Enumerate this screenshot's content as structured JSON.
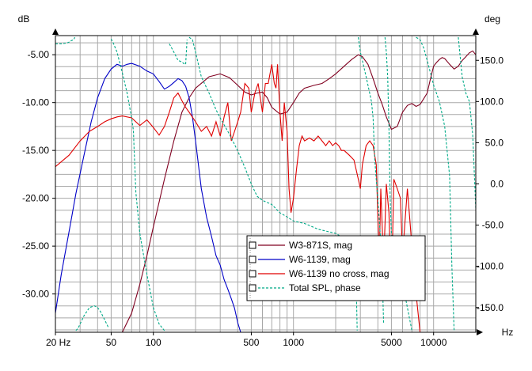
{
  "chart_data": {
    "type": "line",
    "x_scale": "log",
    "xlim": [
      20,
      20000
    ],
    "ylim": [
      -34,
      -3
    ],
    "y2lim": [
      -180,
      180
    ],
    "left_unit": "dB",
    "right_unit": "deg",
    "x_unit": "Hz",
    "grid": true,
    "legend_position": "bottom-right",
    "x_ticks": [
      "20 Hz",
      "50",
      "100",
      "500",
      "1000",
      "5000",
      "10000"
    ],
    "x_tick_values": [
      20,
      50,
      100,
      500,
      1000,
      5000,
      10000
    ],
    "y_ticks": [
      "-5.00",
      "-10.00",
      "-15.00",
      "-20.00",
      "-25.00",
      "-30.00"
    ],
    "y_tick_values": [
      -5,
      -10,
      -15,
      -20,
      -25,
      -30
    ],
    "y2_ticks": [
      "150.0",
      "100.0",
      "50.0",
      "0.0",
      "-50.0",
      "-100.0",
      "-150.0"
    ],
    "y2_tick_values": [
      150,
      100,
      50,
      0,
      -50,
      -100,
      -150
    ],
    "series": [
      {
        "name": "W3-871S, mag",
        "color": "#800020",
        "dash": "solid",
        "axis": "left",
        "x": [
          60,
          70,
          80,
          90,
          100,
          120,
          140,
          160,
          180,
          200,
          250,
          300,
          350,
          400,
          450,
          500,
          550,
          600,
          650,
          700,
          800,
          900,
          1000,
          1100,
          1200,
          1400,
          1600,
          1800,
          2000,
          2300,
          2600,
          2900,
          3100,
          3400,
          3700,
          4000,
          4300,
          4600,
          5000,
          5500,
          6000,
          6500,
          7000,
          7500,
          8000,
          8500,
          9000,
          9500,
          10000,
          10500,
          11000,
          11500,
          12000,
          13000,
          14000,
          15000,
          16000,
          17000,
          18000,
          19000,
          20000
        ],
        "values": [
          -34,
          -32,
          -29,
          -26,
          -23,
          -18,
          -14,
          -11,
          -9.5,
          -8.5,
          -7.3,
          -7.0,
          -7.4,
          -8.2,
          -8.9,
          -9.2,
          -9.0,
          -8.9,
          -9.5,
          -10.5,
          -11.2,
          -11.0,
          -10.0,
          -9.0,
          -8.5,
          -8.2,
          -8.0,
          -7.5,
          -7.0,
          -6.2,
          -5.5,
          -5.0,
          -5.2,
          -6.0,
          -7.5,
          -9.0,
          -10.2,
          -11.5,
          -12.8,
          -12.5,
          -11.0,
          -10.3,
          -10.1,
          -10.4,
          -10.2,
          -9.6,
          -9.0,
          -7.5,
          -6.2,
          -5.8,
          -5.5,
          -5.3,
          -5.4,
          -6.0,
          -6.5,
          -6.2,
          -5.6,
          -5.2,
          -4.8,
          -4.6,
          -5.0
        ]
      },
      {
        "name": "W6-1139, mag",
        "color": "#0000c8",
        "dash": "solid",
        "axis": "left",
        "x": [
          20,
          22,
          25,
          28,
          32,
          36,
          40,
          45,
          50,
          55,
          60,
          65,
          70,
          80,
          90,
          100,
          110,
          120,
          130,
          140,
          150,
          160,
          170,
          180,
          190,
          200,
          220,
          240,
          260,
          280,
          300,
          320,
          340,
          360,
          380,
          400,
          420
        ],
        "values": [
          -32,
          -28,
          -23.5,
          -19.5,
          -15.5,
          -12,
          -9.5,
          -7.5,
          -6.5,
          -6.0,
          -6.2,
          -6.0,
          -5.9,
          -6.2,
          -6.7,
          -7.0,
          -7.8,
          -8.6,
          -8.3,
          -7.9,
          -7.5,
          -7.7,
          -8.3,
          -9.5,
          -11.5,
          -14,
          -19,
          -22,
          -24,
          -26,
          -27,
          -28.5,
          -29.5,
          -30.5,
          -31.5,
          -33,
          -34
        ]
      },
      {
        "name": "W6-1139 no cross, mag",
        "color": "#e00000",
        "dash": "solid",
        "axis": "left",
        "x": [
          20,
          25,
          30,
          35,
          40,
          45,
          50,
          55,
          60,
          70,
          80,
          90,
          100,
          110,
          120,
          130,
          140,
          150,
          160,
          170,
          180,
          200,
          220,
          240,
          260,
          280,
          300,
          320,
          340,
          360,
          380,
          400,
          420,
          450,
          480,
          500,
          530,
          560,
          600,
          630,
          660,
          700,
          730,
          750,
          770,
          800,
          830,
          860,
          900,
          930,
          960,
          1000,
          1050,
          1100,
          1150,
          1200,
          1300,
          1400,
          1500,
          1600,
          1700,
          1800,
          1900,
          2000,
          2100,
          2200,
          2300,
          2500,
          2700,
          2900,
          3000,
          3100,
          3300,
          3500,
          3700,
          3900,
          4000,
          4100,
          4200,
          4400,
          4600,
          4800,
          5000,
          5200,
          5500,
          5800,
          6000,
          6500,
          7000,
          7500,
          8000
        ],
        "values": [
          -16.7,
          -15.5,
          -14.0,
          -13.0,
          -12.5,
          -12.0,
          -11.7,
          -11.5,
          -11.4,
          -11.6,
          -12.4,
          -11.8,
          -12.6,
          -13.4,
          -12.5,
          -11.0,
          -9.5,
          -9.0,
          -9.8,
          -10.5,
          -11.0,
          -12.0,
          -13.0,
          -12.5,
          -13.5,
          -12.0,
          -13.5,
          -11.5,
          -10.0,
          -14.0,
          -13.0,
          -12.0,
          -11.0,
          -8.0,
          -8.5,
          -11.0,
          -9.0,
          -8.0,
          -11.0,
          -8.0,
          -8.0,
          -6.0,
          -8.0,
          -8.5,
          -6.0,
          -11.0,
          -14.0,
          -10.0,
          -13.0,
          -19.0,
          -21.5,
          -20.0,
          -17.0,
          -14.5,
          -13.5,
          -14.0,
          -13.7,
          -14.0,
          -13.5,
          -14.0,
          -14.5,
          -14.0,
          -14.5,
          -14.2,
          -14.5,
          -15.0,
          -15.0,
          -15.5,
          -16.0,
          -18.0,
          -19.0,
          -16.5,
          -14.5,
          -14.0,
          -14.5,
          -16.5,
          -22.0,
          -26.0,
          -19.0,
          -27.0,
          -18.5,
          -21.5,
          -30.0,
          -18.0,
          -19.0,
          -20.0,
          -26.0,
          -19.0,
          -25.0,
          -30.0,
          -34.0
        ]
      },
      {
        "name": "Total SPL, phase",
        "color": "#00aa88",
        "dash": "dashed",
        "axis": "right",
        "x": [
          20,
          22,
          24,
          25,
          26,
          27,
          27.5,
          28,
          29,
          30,
          32,
          35,
          38,
          40,
          42,
          45,
          48,
          50,
          52,
          55,
          60,
          65,
          70,
          72,
          73,
          74,
          75,
          80,
          90,
          100,
          110,
          120,
          130,
          140,
          150,
          160,
          165,
          170,
          172,
          174,
          176,
          180,
          190,
          200,
          220,
          250,
          280,
          300,
          350,
          400,
          450,
          500,
          550,
          600,
          700,
          800,
          900,
          1000,
          1200,
          1500,
          2000,
          2500,
          2700,
          2800,
          2850,
          2900,
          3000,
          3300,
          3500,
          3600,
          3700,
          3800,
          4000,
          4200,
          4300,
          4400,
          4500,
          4600,
          4700,
          4800,
          4850,
          4900,
          5000,
          5500,
          6000,
          6500,
          7000,
          7500,
          8000,
          8500,
          9000,
          10000,
          11000,
          12000,
          13000,
          13500,
          14000,
          15000,
          16000,
          17000,
          18000,
          19000,
          20000
        ],
        "values": [
          170,
          170,
          171,
          172,
          174,
          175,
          178,
          -178,
          -175,
          -170,
          -160,
          -150,
          -148,
          -150,
          -155,
          -165,
          -175,
          176,
          170,
          160,
          135,
          110,
          80,
          65,
          40,
          15,
          -10,
          -60,
          -110,
          -150,
          -170,
          -178,
          170,
          160,
          150,
          148,
          146,
          145,
          160,
          175,
          -178,
          178,
          175,
          160,
          130,
          110,
          90,
          80,
          60,
          40,
          20,
          0,
          -15,
          -20,
          -25,
          -35,
          -40,
          -45,
          -48,
          -55,
          -60,
          -70,
          -80,
          -120,
          -178,
          178,
          160,
          130,
          110,
          100,
          80,
          30,
          -20,
          -70,
          -110,
          -170,
          178,
          160,
          130,
          70,
          20,
          -20,
          -60,
          -90,
          -120,
          -150,
          -178,
          178,
          175,
          165,
          150,
          120,
          100,
          70,
          10,
          -100,
          -178,
          178,
          130,
          110,
          100,
          60,
          -30
        ]
      }
    ]
  }
}
